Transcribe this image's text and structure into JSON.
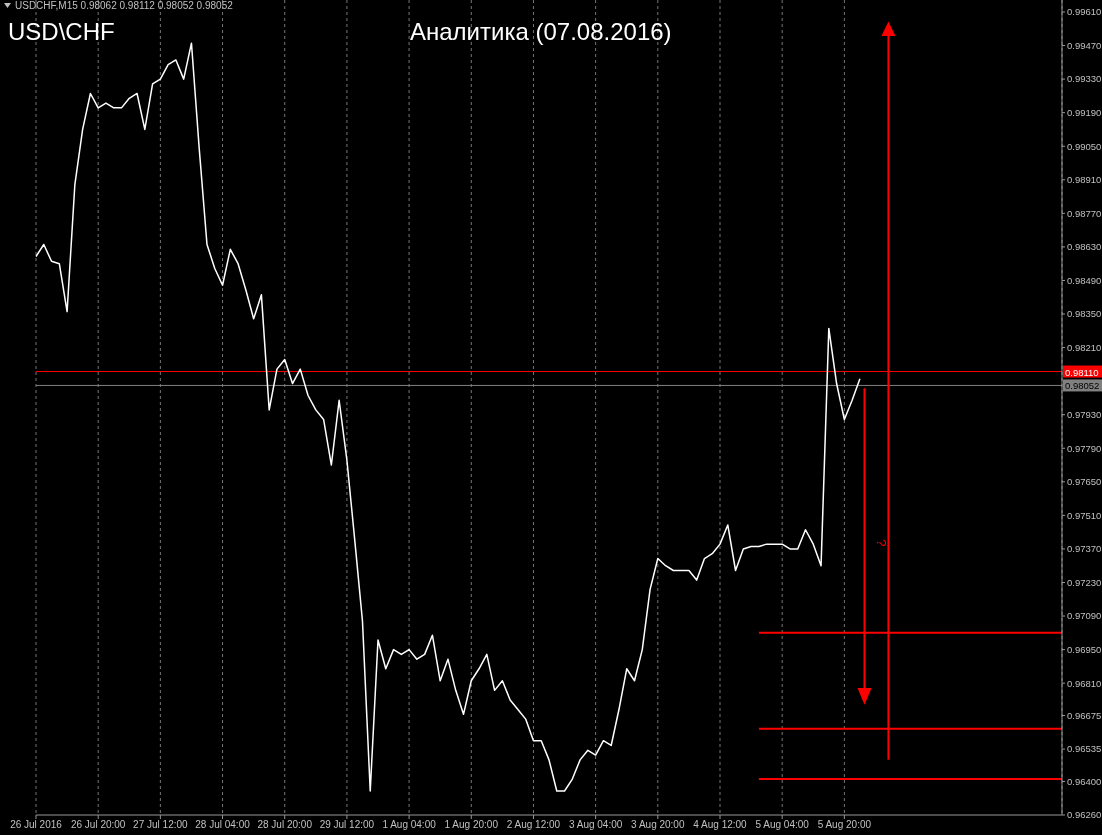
{
  "chart_data": {
    "type": "line",
    "title": "Аналитика (07.08.2016)",
    "subtitle": "USD\\CHF",
    "annotations": [
      "USDCHF,M15 0.98062 0.98112 0.98052 0.98052",
      "?"
    ],
    "grid": "x",
    "categories": [
      "26 Jul 2016",
      null,
      null,
      null,
      null,
      null,
      null,
      null,
      "26 Jul 20:00",
      null,
      null,
      null,
      null,
      null,
      null,
      null,
      "27 Jul 12:00",
      null,
      null,
      null,
      null,
      null,
      null,
      null,
      "28 Jul 04:00",
      null,
      null,
      null,
      null,
      null,
      null,
      null,
      "28 Jul 20:00",
      null,
      null,
      null,
      null,
      null,
      null,
      null,
      "29 Jul 12:00",
      null,
      null,
      null,
      null,
      null,
      null,
      null,
      "1 Aug 04:00",
      null,
      null,
      null,
      null,
      null,
      null,
      null,
      "1 Aug 20:00",
      null,
      null,
      null,
      null,
      null,
      null,
      null,
      "2 Aug 12:00",
      null,
      null,
      null,
      null,
      null,
      null,
      null,
      "3 Aug 04:00",
      null,
      null,
      null,
      null,
      null,
      null,
      null,
      "3 Aug 20:00",
      null,
      null,
      null,
      null,
      null,
      null,
      null,
      "4 Aug 12:00",
      null,
      null,
      null,
      null,
      null,
      null,
      null,
      "5 Aug 04:00",
      null,
      null,
      null,
      null,
      null,
      null,
      null,
      "5 Aug 20:00",
      null,
      null,
      null,
      null,
      null,
      null,
      null,
      null,
      null,
      null,
      null,
      null,
      null,
      null,
      null,
      null,
      null,
      null,
      null,
      null,
      null,
      null,
      null,
      null,
      null,
      null,
      null,
      null
    ],
    "ylim": [
      0.9626,
      0.9966
    ],
    "yticks": [
      {
        "value": 0.9961,
        "label": "0.99610"
      },
      {
        "value": 0.9947,
        "label": "0.99470"
      },
      {
        "value": 0.9933,
        "label": "0.99330"
      },
      {
        "value": 0.9919,
        "label": "0.99190"
      },
      {
        "value": 0.9905,
        "label": "0.99050"
      },
      {
        "value": 0.9891,
        "label": "0.98910"
      },
      {
        "value": 0.9877,
        "label": "0.98770"
      },
      {
        "value": 0.9863,
        "label": "0.98630"
      },
      {
        "value": 0.9849,
        "label": "0.98490"
      },
      {
        "value": 0.9835,
        "label": "0.98350"
      },
      {
        "value": 0.9821,
        "label": "0.98210"
      },
      {
        "value": 0.9793,
        "label": "0.97930"
      },
      {
        "value": 0.9779,
        "label": "0.97790"
      },
      {
        "value": 0.9765,
        "label": "0.97650"
      },
      {
        "value": 0.9751,
        "label": "0.97510"
      },
      {
        "value": 0.9737,
        "label": "0.97370"
      },
      {
        "value": 0.9723,
        "label": "0.97230"
      },
      {
        "value": 0.9709,
        "label": "0.97090"
      },
      {
        "value": 0.9695,
        "label": "0.96950"
      },
      {
        "value": 0.9681,
        "label": "0.96810"
      },
      {
        "value": 0.96675,
        "label": "0.96675"
      },
      {
        "value": 0.96535,
        "label": "0.96535"
      },
      {
        "value": 0.964,
        "label": "0.96400"
      },
      {
        "value": 0.9626,
        "label": "0.96260"
      }
    ],
    "ref_lines": [
      {
        "axis": "y",
        "value": 0.9811,
        "label": "0.98110",
        "color": "#ff0000"
      },
      {
        "axis": "y",
        "value": 0.98052,
        "label": "0.98052",
        "color": "#808080"
      }
    ],
    "series": [
      {
        "type": "line",
        "color": "#ffffff",
        "values": [
          0.9859,
          0.9864,
          0.9857,
          0.9856,
          0.9836,
          0.9889,
          0.9912,
          0.9927,
          0.9921,
          0.9923,
          0.9921,
          0.9921,
          0.9925,
          0.9927,
          0.9912,
          0.9931,
          0.9933,
          0.9939,
          0.9941,
          0.9933,
          0.9948,
          0.9904,
          0.9864,
          0.9854,
          0.9847,
          0.9862,
          0.9856,
          0.9845,
          0.9833,
          0.9843,
          0.9795,
          0.9812,
          0.9816,
          0.9806,
          0.9812,
          0.9801,
          0.9795,
          0.9791,
          0.9772,
          0.9799,
          0.9774,
          0.9741,
          0.9707,
          0.9636,
          0.9699,
          0.9687,
          0.9695,
          0.9693,
          0.9695,
          0.9691,
          0.9693,
          0.9701,
          0.9682,
          0.9691,
          0.9678,
          0.9668,
          0.9682,
          0.9687,
          0.9693,
          0.9678,
          0.9682,
          0.9674,
          0.967,
          0.9666,
          0.9657,
          0.9657,
          0.9649,
          0.9636,
          0.9636,
          0.9641,
          0.9649,
          0.9653,
          0.9651,
          0.9657,
          0.9655,
          0.967,
          0.9687,
          0.9682,
          0.9695,
          0.972,
          0.9733,
          0.973,
          0.9728,
          0.9728,
          0.9728,
          0.9724,
          0.9733,
          0.9735,
          0.9739,
          0.9747,
          0.9728,
          0.9737,
          0.9738,
          0.9738,
          0.9739,
          0.9739,
          0.9739,
          0.9737,
          0.9737,
          0.9745,
          0.9739,
          0.973,
          0.9829,
          0.9806,
          0.9791,
          0.9799,
          0.9808,
          null,
          null,
          null,
          null,
          null,
          null,
          null,
          null,
          null,
          null,
          null,
          null,
          null,
          null,
          null,
          null,
          null,
          null,
          null,
          null,
          null,
          null,
          null,
          null,
          null,
          null
        ]
      },
      {
        "type": "line",
        "color": "#ff0000",
        "values": [
          null,
          null,
          null,
          null,
          null,
          null,
          null,
          null,
          null,
          null,
          null,
          null,
          null,
          null,
          null,
          null,
          null,
          null,
          null,
          null,
          null,
          null,
          null,
          null,
          null,
          null,
          null,
          null,
          null,
          null,
          null,
          null,
          null,
          null,
          null,
          null,
          null,
          null,
          null,
          null,
          null,
          null,
          null,
          null,
          null,
          null,
          null,
          null,
          null,
          null,
          null,
          null,
          null,
          null,
          null,
          null,
          null,
          null,
          null,
          null,
          null,
          null,
          null,
          null,
          null,
          null,
          null,
          null,
          null,
          null,
          null,
          null,
          null,
          null,
          null,
          null,
          null,
          null,
          null,
          null,
          null,
          null,
          null,
          null,
          null,
          null,
          null,
          null,
          null,
          null,
          null,
          null,
          null,
          0.9702,
          0.9702,
          0.9702,
          0.9702,
          0.9702,
          0.9702,
          0.9702,
          0.9702,
          0.9702,
          0.9702,
          0.9702,
          0.9702,
          0.9702,
          0.9702,
          0.9702,
          0.9702,
          0.9702,
          0.9702,
          0.9702,
          0.9702,
          0.9702,
          0.9702,
          0.9702,
          0.9702,
          0.9702,
          0.9702,
          0.9702,
          0.9702,
          0.9702,
          0.9702,
          0.9702,
          0.9702,
          0.9702,
          0.9702,
          0.9702,
          0.9702,
          0.9702,
          0.9702,
          0.9702,
          0.9702
        ]
      },
      {
        "type": "line",
        "color": "#ff0000",
        "values": [
          null,
          null,
          null,
          null,
          null,
          null,
          null,
          null,
          null,
          null,
          null,
          null,
          null,
          null,
          null,
          null,
          null,
          null,
          null,
          null,
          null,
          null,
          null,
          null,
          null,
          null,
          null,
          null,
          null,
          null,
          null,
          null,
          null,
          null,
          null,
          null,
          null,
          null,
          null,
          null,
          null,
          null,
          null,
          null,
          null,
          null,
          null,
          null,
          null,
          null,
          null,
          null,
          null,
          null,
          null,
          null,
          null,
          null,
          null,
          null,
          null,
          null,
          null,
          null,
          null,
          null,
          null,
          null,
          null,
          null,
          null,
          null,
          null,
          null,
          null,
          null,
          null,
          null,
          null,
          null,
          null,
          null,
          null,
          null,
          null,
          null,
          null,
          null,
          null,
          null,
          null,
          null,
          null,
          0.9662,
          0.9662,
          0.9662,
          0.9662,
          0.9662,
          0.9662,
          0.9662,
          0.9662,
          0.9662,
          0.9662,
          0.9662,
          0.9662,
          0.9662,
          0.9662,
          0.9662,
          0.9662,
          0.9662,
          0.9662,
          0.9662,
          0.9662,
          0.9662,
          0.9662,
          0.9662,
          0.9662,
          0.9662,
          0.9662,
          0.9662,
          0.9662,
          0.9662,
          0.9662,
          0.9662,
          0.9662,
          0.9662,
          0.9662,
          0.9662,
          0.9662,
          0.9662,
          0.9662,
          0.9662,
          0.9662
        ]
      },
      {
        "type": "line",
        "color": "#ff0000",
        "values": [
          null,
          null,
          null,
          null,
          null,
          null,
          null,
          null,
          null,
          null,
          null,
          null,
          null,
          null,
          null,
          null,
          null,
          null,
          null,
          null,
          null,
          null,
          null,
          null,
          null,
          null,
          null,
          null,
          null,
          null,
          null,
          null,
          null,
          null,
          null,
          null,
          null,
          null,
          null,
          null,
          null,
          null,
          null,
          null,
          null,
          null,
          null,
          null,
          null,
          null,
          null,
          null,
          null,
          null,
          null,
          null,
          null,
          null,
          null,
          null,
          null,
          null,
          null,
          null,
          null,
          null,
          null,
          null,
          null,
          null,
          null,
          null,
          null,
          null,
          null,
          null,
          null,
          null,
          null,
          null,
          null,
          null,
          null,
          null,
          null,
          null,
          null,
          null,
          null,
          null,
          null,
          null,
          null,
          0.9641,
          0.9641,
          0.9641,
          0.9641,
          0.9641,
          0.9641,
          0.9641,
          0.9641,
          0.9641,
          0.9641,
          0.9641,
          0.9641,
          0.9641,
          0.9641,
          0.9641,
          0.9641,
          0.9641,
          0.9641,
          0.9641,
          0.9641,
          0.9641,
          0.9641,
          0.9641,
          0.9641,
          0.9641,
          0.9641,
          0.9641,
          0.9641,
          0.9641,
          0.9641,
          0.9641,
          0.9641,
          0.9641,
          0.9641,
          0.9641,
          0.9641,
          0.9641,
          0.9641,
          0.9641,
          0.9641
        ]
      }
    ]
  }
}
